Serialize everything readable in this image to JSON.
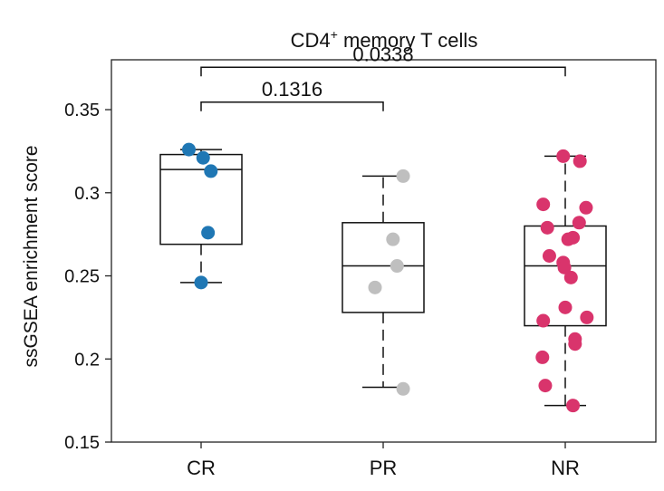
{
  "chart_data": {
    "type": "box",
    "title": "CD4",
    "title_superscript": "+",
    "title_suffix": " memory T cells",
    "ylabel": "ssGSEA enrichment score",
    "xlabel": "",
    "ylim": [
      0.15,
      0.38
    ],
    "yticks": [
      0.15,
      0.2,
      0.25,
      0.3,
      0.35
    ],
    "ytick_labels": [
      "0.15",
      "0.2",
      "0.25",
      "0.3",
      "0.35"
    ],
    "grid": false,
    "categories": [
      "CR",
      "PR",
      "NR"
    ],
    "groups": [
      {
        "name": "CR",
        "color": "#1f77b4",
        "box": {
          "whisker_low": 0.246,
          "q1": 0.269,
          "median": 0.314,
          "q3": 0.323,
          "whisker_high": 0.326
        },
        "points": [
          {
            "offset": -0.3,
            "y": 0.326
          },
          {
            "offset": 0.05,
            "y": 0.321
          },
          {
            "offset": 0.24,
            "y": 0.313
          },
          {
            "offset": 0.17,
            "y": 0.276
          },
          {
            "offset": 0.0,
            "y": 0.246
          }
        ]
      },
      {
        "name": "PR",
        "color": "#bfbfbf",
        "box": {
          "whisker_low": 0.183,
          "q1": 0.228,
          "median": 0.256,
          "q3": 0.282,
          "whisker_high": 0.31
        },
        "points": [
          {
            "offset": 0.49,
            "y": 0.31
          },
          {
            "offset": 0.24,
            "y": 0.272
          },
          {
            "offset": 0.34,
            "y": 0.256
          },
          {
            "offset": -0.2,
            "y": 0.243
          },
          {
            "offset": 0.49,
            "y": 0.182
          }
        ]
      },
      {
        "name": "NR",
        "color": "#d9346c",
        "box": {
          "whisker_low": 0.172,
          "q1": 0.22,
          "median": 0.256,
          "q3": 0.28,
          "whisker_high": 0.322
        },
        "points": [
          {
            "offset": -0.05,
            "y": 0.322
          },
          {
            "offset": 0.36,
            "y": 0.319
          },
          {
            "offset": -0.54,
            "y": 0.293
          },
          {
            "offset": 0.51,
            "y": 0.291
          },
          {
            "offset": 0.34,
            "y": 0.282
          },
          {
            "offset": -0.44,
            "y": 0.279
          },
          {
            "offset": 0.19,
            "y": 0.273
          },
          {
            "offset": 0.07,
            "y": 0.272
          },
          {
            "offset": -0.39,
            "y": 0.262
          },
          {
            "offset": -0.05,
            "y": 0.258
          },
          {
            "offset": -0.02,
            "y": 0.255
          },
          {
            "offset": 0.14,
            "y": 0.249
          },
          {
            "offset": 0.0,
            "y": 0.231
          },
          {
            "offset": 0.53,
            "y": 0.225
          },
          {
            "offset": -0.54,
            "y": 0.223
          },
          {
            "offset": 0.24,
            "y": 0.212
          },
          {
            "offset": 0.24,
            "y": 0.209
          },
          {
            "offset": -0.56,
            "y": 0.201
          },
          {
            "offset": -0.49,
            "y": 0.184
          },
          {
            "offset": 0.19,
            "y": 0.172
          }
        ]
      }
    ],
    "comparisons": [
      {
        "from": "CR",
        "to": "PR",
        "label": "0.1316",
        "y": 0.3545
      },
      {
        "from": "CR",
        "to": "NR",
        "label": "0.0338",
        "y": 0.3755
      }
    ]
  }
}
